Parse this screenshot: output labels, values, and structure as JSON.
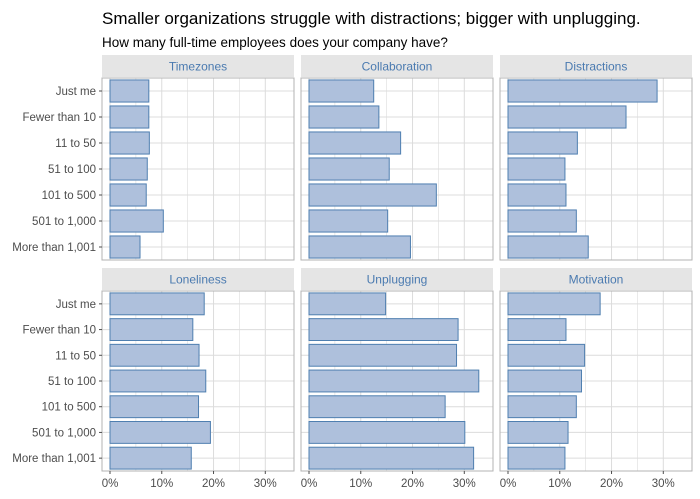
{
  "chart_data": {
    "type": "bar",
    "orientation": "horizontal",
    "title": "Smaller organizations struggle with distractions; bigger with unplugging.",
    "subtitle": "How many full-time employees does your company have?",
    "categories": [
      "Just me",
      "Fewer than 10",
      "11 to 50",
      "51 to 100",
      "101 to 500",
      "501 to 1,000",
      "More than 1,001"
    ],
    "x_ticks": [
      "0%",
      "10%",
      "20%",
      "30%"
    ],
    "xlim": [
      0,
      34
    ],
    "grid": true,
    "colors": {
      "bar_fill": "#aec0dc",
      "bar_stroke": "#4f7fb0",
      "strip_bg": "#e5e5e5",
      "strip_text": "#4a7ab0",
      "grid": "#dcdcdc"
    },
    "panels": [
      {
        "name": "Timezones",
        "values": [
          7.5,
          7.5,
          7.6,
          7.2,
          7.0,
          10.3,
          5.8
        ]
      },
      {
        "name": "Collaboration",
        "values": [
          12.5,
          13.5,
          17.7,
          15.5,
          24.6,
          15.2,
          19.6
        ]
      },
      {
        "name": "Distractions",
        "values": [
          28.8,
          22.8,
          13.4,
          11.0,
          11.2,
          13.2,
          15.5
        ]
      },
      {
        "name": "Loneliness",
        "values": [
          18.2,
          16.0,
          17.2,
          18.5,
          17.1,
          19.4,
          15.7
        ]
      },
      {
        "name": "Unplugging",
        "values": [
          14.8,
          28.8,
          28.5,
          32.8,
          26.3,
          30.1,
          31.8
        ]
      },
      {
        "name": "Motivation",
        "values": [
          17.8,
          11.2,
          14.8,
          14.2,
          13.2,
          11.6,
          11.0
        ]
      }
    ]
  }
}
